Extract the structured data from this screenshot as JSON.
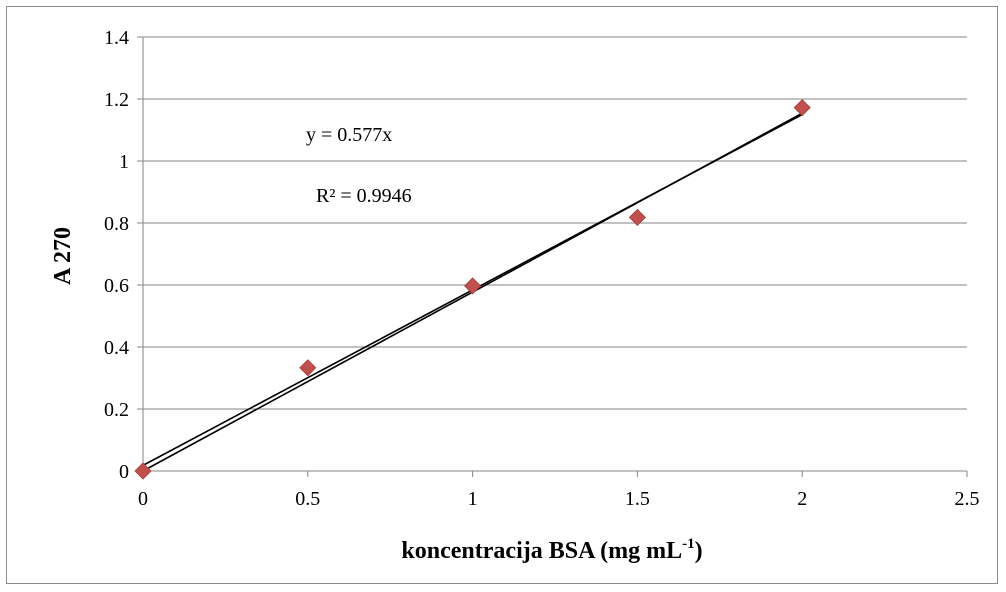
{
  "chart_data": {
    "type": "scatter",
    "xlabel": "koncentracija BSA (mg mL",
    "xlabel_sup": "-1",
    "xlabel_tail": ")",
    "ylabel": "A 270",
    "xlim": [
      0,
      2.5
    ],
    "ylim": [
      0,
      1.4
    ],
    "xticks": [
      "0",
      "0.5",
      "1",
      "1.5",
      "2",
      "2.5"
    ],
    "yticks": [
      "0",
      "0.2",
      "0.4",
      "0.6",
      "0.8",
      "1",
      "1.2",
      "1.4"
    ],
    "grid": true,
    "marker_color": "#c0504d",
    "series": [
      {
        "x": [
          0,
          0.5,
          1,
          1.5,
          2
        ],
        "y": [
          0,
          0.333,
          0.597,
          0.818,
          1.172
        ]
      }
    ],
    "trendline": {
      "equation": "y = 0.577x",
      "r_squared": "R² = 0.9946",
      "slope": 0.577,
      "x_range": [
        0,
        2
      ]
    }
  }
}
